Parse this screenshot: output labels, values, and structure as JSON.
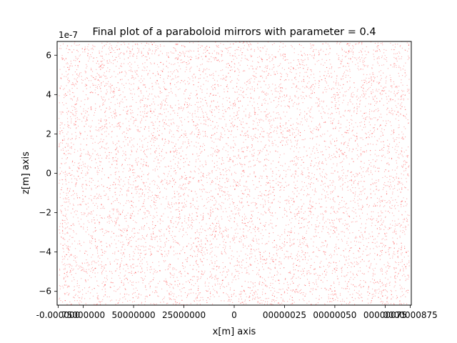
{
  "chart_data": {
    "type": "scatter",
    "title": "Final plot of a paraboloid mirrors with parameter = 0.4",
    "xlabel": "x[m] axis",
    "ylabel": "z[m] axis",
    "y_offset_text": "1e-7",
    "xlim": [
      -8.8e-07,
      8.8e-07
    ],
    "ylim": [
      -6.7e-07,
      6.7e-07
    ],
    "x_ticks": [
      -8.75e-07,
      -7.5e-07,
      -5e-07,
      -2.5e-07,
      0.0,
      2.5e-07,
      5e-07,
      7.5e-07,
      8.75e-07
    ],
    "x_tick_labels": [
      "-0.000000",
      "75000000",
      "50000000",
      "25000000",
      "0",
      "00000025",
      "00000050",
      "00000075",
      "0000000875"
    ],
    "y_ticks": [
      -6,
      -4,
      -2,
      0,
      2,
      4,
      6
    ],
    "y_tick_labels": [
      "−6",
      "−4",
      "−2",
      "0",
      "2",
      "4",
      "6"
    ],
    "series": [
      {
        "color": "#ff0000",
        "marker_alpha": 0.35,
        "x_range": [
          -8.7e-07,
          8.7e-07
        ],
        "z_range": [
          -6.7e-07,
          6.7e-07
        ],
        "distribution": "uniform dense point cloud",
        "point_count": 9000
      }
    ],
    "grid": false,
    "legend": "none"
  }
}
